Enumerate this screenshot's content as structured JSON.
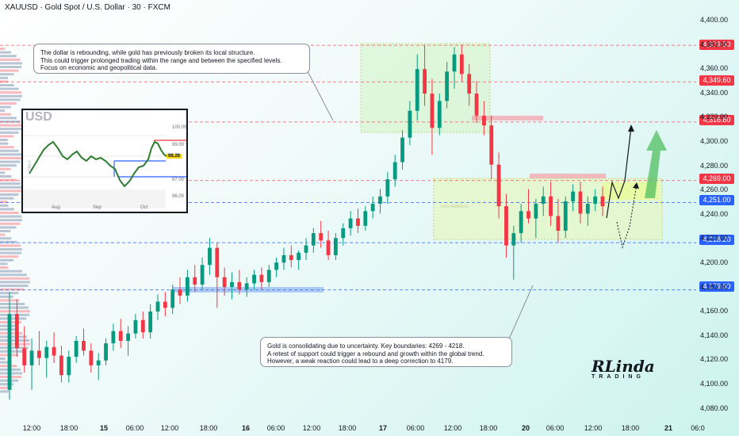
{
  "header": {
    "title": "XAUUSD · Gold Spot / U.S. Dollar · 30 · FXCM"
  },
  "callouts": {
    "top": {
      "line1": "The dollar is rebounding, while gold has previously broken its local structure.",
      "line2": "This could trigger prolonged trading within the range and between the specified levels.",
      "line3": "Focus on economic and geopolitical data."
    },
    "bottom": {
      "line1": "Gold is consolidating due to uncertainty. Key boundaries: 4269 - 4218.",
      "line2": "A retest of support could trigger a rebound and growth within the global trend.",
      "line3": "However, a weak reaction could lead to a deep correction to 4179."
    }
  },
  "price_labels": [
    {
      "value": "4,379.50",
      "color": "#f23645"
    },
    {
      "value": "4,349.60",
      "color": "#f23645"
    },
    {
      "value": "4,316.80",
      "color": "#f23645"
    },
    {
      "value": "4,269.00",
      "color": "#f23645"
    },
    {
      "value": "4,251.00",
      "color": "#2962ff"
    },
    {
      "value": "4,218.20",
      "color": "#2962ff"
    },
    {
      "value": "4,179.60",
      "color": "#2962ff"
    }
  ],
  "y_ticks": [
    "4,400.00",
    "4,380.00",
    "4,360.00",
    "4,340.00",
    "4,320.00",
    "4,300.00",
    "4,280.00",
    "4,260.00",
    "4,240.00",
    "4,220.00",
    "4,200.00",
    "4,180.00",
    "4,160.00",
    "4,140.00",
    "4,120.00",
    "4,100.00",
    "4,080.00"
  ],
  "x_ticks": [
    "12:00",
    "18:00",
    "15",
    "06:00",
    "12:00",
    "18:00",
    "16",
    "06:00",
    "12:00",
    "18:00",
    "17",
    "06:00",
    "12:00",
    "18:00",
    "20",
    "06:00",
    "12:00",
    "18:00",
    "21",
    "06:0"
  ],
  "inset": {
    "title": "USD",
    "y_ticks": [
      "100.00",
      "99.00",
      "98.00",
      "97.00",
      "96.00"
    ],
    "x_ticks": [
      "Aug",
      "Sep",
      "Oct"
    ],
    "current_price": "98.26",
    "side_label": "DAILY"
  },
  "zone_label": "consolidation",
  "logo": {
    "main": "RLinda",
    "sub": "TRADING"
  },
  "chart_data": {
    "type": "candlestick",
    "symbol": "XAUUSD",
    "timeframe": "30",
    "ylim": [
      4070,
      4410
    ],
    "levels": [
      4379.5,
      4349.6,
      4316.8,
      4269.0,
      4251.0,
      4218.2,
      4179.6
    ],
    "range_zone": [
      4218,
      4269
    ],
    "colors": {
      "up": "#089981",
      "down": "#f23645",
      "wick_up": "#089981",
      "wick_down": "#f23645"
    },
    "candles": [
      {
        "o": 4098,
        "h": 4178,
        "l": 4090,
        "c": 4160
      },
      {
        "o": 4160,
        "h": 4172,
        "l": 4125,
        "c": 4132
      },
      {
        "o": 4132,
        "h": 4150,
        "l": 4112,
        "c": 4118
      },
      {
        "o": 4118,
        "h": 4140,
        "l": 4098,
        "c": 4130
      },
      {
        "o": 4130,
        "h": 4146,
        "l": 4118,
        "c": 4124
      },
      {
        "o": 4124,
        "h": 4138,
        "l": 4108,
        "c": 4133
      },
      {
        "o": 4133,
        "h": 4145,
        "l": 4120,
        "c": 4126
      },
      {
        "o": 4126,
        "h": 4134,
        "l": 4104,
        "c": 4110
      },
      {
        "o": 4110,
        "h": 4130,
        "l": 4104,
        "c": 4125
      },
      {
        "o": 4125,
        "h": 4142,
        "l": 4120,
        "c": 4138
      },
      {
        "o": 4138,
        "h": 4148,
        "l": 4126,
        "c": 4130
      },
      {
        "o": 4130,
        "h": 4136,
        "l": 4112,
        "c": 4118
      },
      {
        "o": 4118,
        "h": 4128,
        "l": 4106,
        "c": 4122
      },
      {
        "o": 4122,
        "h": 4140,
        "l": 4118,
        "c": 4136
      },
      {
        "o": 4136,
        "h": 4152,
        "l": 4130,
        "c": 4146
      },
      {
        "o": 4146,
        "h": 4156,
        "l": 4132,
        "c": 4138
      },
      {
        "o": 4138,
        "h": 4150,
        "l": 4126,
        "c": 4144
      },
      {
        "o": 4144,
        "h": 4160,
        "l": 4140,
        "c": 4155
      },
      {
        "o": 4155,
        "h": 4162,
        "l": 4140,
        "c": 4145
      },
      {
        "o": 4145,
        "h": 4168,
        "l": 4140,
        "c": 4162
      },
      {
        "o": 4162,
        "h": 4176,
        "l": 4155,
        "c": 4170
      },
      {
        "o": 4170,
        "h": 4178,
        "l": 4158,
        "c": 4165
      },
      {
        "o": 4165,
        "h": 4184,
        "l": 4160,
        "c": 4180
      },
      {
        "o": 4180,
        "h": 4190,
        "l": 4168,
        "c": 4175
      },
      {
        "o": 4175,
        "h": 4196,
        "l": 4170,
        "c": 4190
      },
      {
        "o": 4190,
        "h": 4200,
        "l": 4178,
        "c": 4184
      },
      {
        "o": 4184,
        "h": 4206,
        "l": 4180,
        "c": 4200
      },
      {
        "o": 4200,
        "h": 4222,
        "l": 4192,
        "c": 4214
      },
      {
        "o": 4214,
        "h": 4218,
        "l": 4165,
        "c": 4190
      },
      {
        "o": 4190,
        "h": 4198,
        "l": 4175,
        "c": 4182
      },
      {
        "o": 4182,
        "h": 4194,
        "l": 4172,
        "c": 4186
      },
      {
        "o": 4186,
        "h": 4196,
        "l": 4176,
        "c": 4180
      },
      {
        "o": 4180,
        "h": 4190,
        "l": 4174,
        "c": 4185
      },
      {
        "o": 4185,
        "h": 4196,
        "l": 4180,
        "c": 4192
      },
      {
        "o": 4192,
        "h": 4198,
        "l": 4180,
        "c": 4186
      },
      {
        "o": 4186,
        "h": 4200,
        "l": 4182,
        "c": 4196
      },
      {
        "o": 4196,
        "h": 4206,
        "l": 4190,
        "c": 4202
      },
      {
        "o": 4202,
        "h": 4214,
        "l": 4196,
        "c": 4208
      },
      {
        "o": 4208,
        "h": 4216,
        "l": 4198,
        "c": 4204
      },
      {
        "o": 4204,
        "h": 4212,
        "l": 4196,
        "c": 4210
      },
      {
        "o": 4210,
        "h": 4222,
        "l": 4204,
        "c": 4216
      },
      {
        "o": 4216,
        "h": 4230,
        "l": 4210,
        "c": 4226
      },
      {
        "o": 4226,
        "h": 4236,
        "l": 4214,
        "c": 4220
      },
      {
        "o": 4220,
        "h": 4228,
        "l": 4204,
        "c": 4208
      },
      {
        "o": 4208,
        "h": 4226,
        "l": 4204,
        "c": 4222
      },
      {
        "o": 4222,
        "h": 4234,
        "l": 4216,
        "c": 4230
      },
      {
        "o": 4230,
        "h": 4244,
        "l": 4224,
        "c": 4238
      },
      {
        "o": 4238,
        "h": 4246,
        "l": 4226,
        "c": 4232
      },
      {
        "o": 4232,
        "h": 4248,
        "l": 4228,
        "c": 4244
      },
      {
        "o": 4244,
        "h": 4256,
        "l": 4238,
        "c": 4250
      },
      {
        "o": 4250,
        "h": 4262,
        "l": 4242,
        "c": 4256
      },
      {
        "o": 4256,
        "h": 4276,
        "l": 4250,
        "c": 4270
      },
      {
        "o": 4270,
        "h": 4290,
        "l": 4264,
        "c": 4284
      },
      {
        "o": 4284,
        "h": 4310,
        "l": 4278,
        "c": 4304
      },
      {
        "o": 4304,
        "h": 4334,
        "l": 4298,
        "c": 4326
      },
      {
        "o": 4326,
        "h": 4372,
        "l": 4318,
        "c": 4360
      },
      {
        "o": 4360,
        "h": 4380,
        "l": 4330,
        "c": 4340
      },
      {
        "o": 4340,
        "h": 4352,
        "l": 4290,
        "c": 4312
      },
      {
        "o": 4312,
        "h": 4340,
        "l": 4306,
        "c": 4334
      },
      {
        "o": 4334,
        "h": 4366,
        "l": 4328,
        "c": 4358
      },
      {
        "o": 4358,
        "h": 4378,
        "l": 4344,
        "c": 4372
      },
      {
        "o": 4372,
        "h": 4380,
        "l": 4350,
        "c": 4356
      },
      {
        "o": 4356,
        "h": 4364,
        "l": 4330,
        "c": 4340
      },
      {
        "o": 4340,
        "h": 4350,
        "l": 4316,
        "c": 4322
      },
      {
        "o": 4322,
        "h": 4334,
        "l": 4306,
        "c": 4314
      },
      {
        "o": 4314,
        "h": 4322,
        "l": 4270,
        "c": 4282
      },
      {
        "o": 4282,
        "h": 4292,
        "l": 4238,
        "c": 4248
      },
      {
        "o": 4248,
        "h": 4258,
        "l": 4206,
        "c": 4216
      },
      {
        "o": 4216,
        "h": 4232,
        "l": 4188,
        "c": 4226
      },
      {
        "o": 4226,
        "h": 4250,
        "l": 4218,
        "c": 4244
      },
      {
        "o": 4244,
        "h": 4262,
        "l": 4234,
        "c": 4238
      },
      {
        "o": 4238,
        "h": 4254,
        "l": 4222,
        "c": 4250
      },
      {
        "o": 4250,
        "h": 4264,
        "l": 4240,
        "c": 4256
      },
      {
        "o": 4256,
        "h": 4268,
        "l": 4232,
        "c": 4240
      },
      {
        "o": 4240,
        "h": 4254,
        "l": 4218,
        "c": 4228
      },
      {
        "o": 4228,
        "h": 4256,
        "l": 4222,
        "c": 4252
      },
      {
        "o": 4252,
        "h": 4266,
        "l": 4244,
        "c": 4260
      },
      {
        "o": 4260,
        "h": 4268,
        "l": 4234,
        "c": 4242
      },
      {
        "o": 4242,
        "h": 4256,
        "l": 4232,
        "c": 4250
      },
      {
        "o": 4250,
        "h": 4262,
        "l": 4244,
        "c": 4256
      },
      {
        "o": 4256,
        "h": 4264,
        "l": 4240,
        "c": 4248
      }
    ]
  }
}
